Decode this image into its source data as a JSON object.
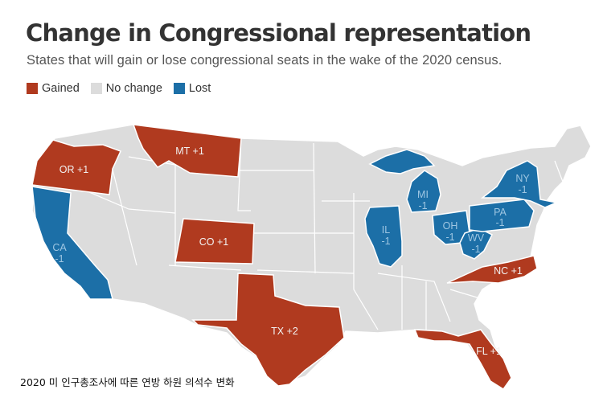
{
  "title": "Change in Congressional representation",
  "subtitle": "States that will gain or lose congressional seats in the wake of the 2020 census.",
  "legend": [
    {
      "key": "gained",
      "label": "Gained",
      "color": "#b03a1f"
    },
    {
      "key": "none",
      "label": "No change",
      "color": "#dcdcdc"
    },
    {
      "key": "lost",
      "label": "Lost",
      "color": "#1c6fa7"
    }
  ],
  "colors": {
    "gained": "#b03a1f",
    "none": "#dcdcdc",
    "lost": "#1c6fa7",
    "border": "#ffffff",
    "label_light": "#f2f2f2",
    "label_blue": "#9ec6e2"
  },
  "states": [
    {
      "name": "OR",
      "change": 1,
      "status": "gained",
      "label": "OR +1"
    },
    {
      "name": "MT",
      "change": 1,
      "status": "gained",
      "label": "MT +1"
    },
    {
      "name": "CO",
      "change": 1,
      "status": "gained",
      "label": "CO +1"
    },
    {
      "name": "TX",
      "change": 2,
      "status": "gained",
      "label": "TX +2"
    },
    {
      "name": "NC",
      "change": 1,
      "status": "gained",
      "label": "NC +1"
    },
    {
      "name": "FL",
      "change": 1,
      "status": "gained",
      "label": "FL +1"
    },
    {
      "name": "CA",
      "change": -1,
      "status": "lost",
      "label": "CA",
      "sub": "-1"
    },
    {
      "name": "IL",
      "change": -1,
      "status": "lost",
      "label": "IL",
      "sub": "-1"
    },
    {
      "name": "MI",
      "change": -1,
      "status": "lost",
      "label": "MI",
      "sub": "-1"
    },
    {
      "name": "OH",
      "change": -1,
      "status": "lost",
      "label": "OH",
      "sub": "-1"
    },
    {
      "name": "WV",
      "change": -1,
      "status": "lost",
      "label": "WV",
      "sub": "-1"
    },
    {
      "name": "PA",
      "change": -1,
      "status": "lost",
      "label": "PA",
      "sub": "-1"
    },
    {
      "name": "NY",
      "change": -1,
      "status": "lost",
      "label": "NY",
      "sub": "-1"
    }
  ],
  "caption": "2020 미 인구총조사에 따른 연방 하원 의석수 변화"
}
